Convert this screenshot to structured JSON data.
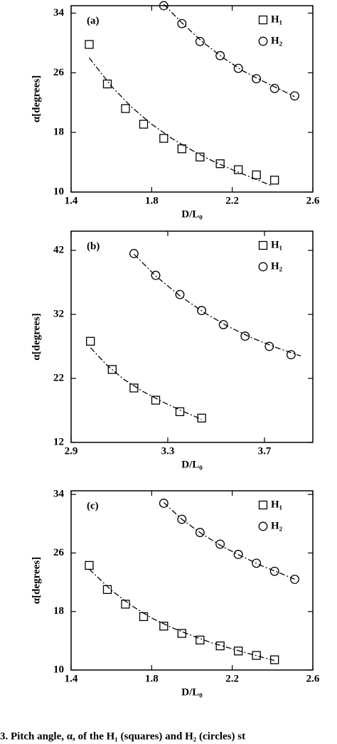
{
  "chart_data": [
    {
      "type": "scatter",
      "label": "(a)",
      "xlabel": "D/L₀",
      "ylabel": "α[degrees]",
      "xlim": [
        1.4,
        2.6
      ],
      "ylim": [
        10,
        35
      ],
      "xticks": [
        1.4,
        1.8,
        2.2,
        2.6
      ],
      "yticks": [
        10,
        18,
        26,
        34
      ],
      "series": [
        {
          "name": "H₁",
          "marker": "square",
          "color": "#000000",
          "x": [
            1.49,
            1.58,
            1.67,
            1.76,
            1.86,
            1.95,
            2.04,
            2.14,
            2.23,
            2.32,
            2.41
          ],
          "values": [
            29.8,
            24.5,
            21.2,
            19.1,
            17.2,
            15.8,
            14.7,
            13.8,
            13.0,
            12.3,
            11.6
          ],
          "fit_x": [
            1.49,
            1.6,
            1.7,
            1.8,
            1.9,
            2.0,
            2.1,
            2.2,
            2.3,
            2.4
          ],
          "fit_values": [
            28,
            24.2,
            21.4,
            19.1,
            17.2,
            15.6,
            14.2,
            13.0,
            11.9,
            10.8
          ]
        },
        {
          "name": "H₂",
          "marker": "circle",
          "color": "#000000",
          "x": [
            1.86,
            1.95,
            2.04,
            2.14,
            2.23,
            2.32,
            2.41,
            2.51
          ],
          "values": [
            35,
            32.6,
            30.2,
            28.3,
            26.6,
            25.2,
            23.9,
            22.9
          ],
          "fit_x": [
            1.86,
            1.95,
            2.05,
            2.15,
            2.25,
            2.35,
            2.45,
            2.51
          ],
          "fit_values": [
            35.2,
            32.7,
            30.2,
            28.1,
            26.3,
            24.9,
            23.6,
            22.8
          ]
        }
      ]
    },
    {
      "type": "scatter",
      "label": "(b)",
      "xlabel": "D/L₀",
      "ylabel": "α[degrees]",
      "xlim": [
        2.9,
        3.9
      ],
      "ylim": [
        12,
        45
      ],
      "xticks": [
        2.9,
        3.3,
        3.7
      ],
      "yticks": [
        12,
        22,
        32,
        42
      ],
      "series": [
        {
          "name": "H₁",
          "marker": "square",
          "color": "#000000",
          "x": [
            2.98,
            3.07,
            3.16,
            3.25,
            3.35,
            3.44
          ],
          "values": [
            27.8,
            23.4,
            20.5,
            18.6,
            16.8,
            15.8
          ],
          "fit_x": [
            2.98,
            3.05,
            3.12,
            3.2,
            3.28,
            3.36,
            3.44
          ],
          "fit_values": [
            26.8,
            24.0,
            21.8,
            19.9,
            18.3,
            16.9,
            15.6
          ]
        },
        {
          "name": "H₂",
          "marker": "circle",
          "color": "#000000",
          "x": [
            3.16,
            3.25,
            3.35,
            3.44,
            3.53,
            3.62,
            3.72,
            3.81
          ],
          "values": [
            41.5,
            38.1,
            35.1,
            32.6,
            30.4,
            28.6,
            27.0,
            25.7
          ],
          "fit_x": [
            3.16,
            3.25,
            3.35,
            3.45,
            3.55,
            3.65,
            3.75,
            3.85
          ],
          "fit_values": [
            41.4,
            38.0,
            34.9,
            32.3,
            30.1,
            28.3,
            26.8,
            25.5
          ]
        }
      ]
    },
    {
      "type": "scatter",
      "label": "(c)",
      "xlabel": "D/L₀",
      "ylabel": "α[degrees]",
      "xlim": [
        1.4,
        2.6
      ],
      "ylim": [
        10,
        34.5
      ],
      "xticks": [
        1.4,
        1.8,
        2.2,
        2.6
      ],
      "yticks": [
        10,
        18,
        26,
        34
      ],
      "series": [
        {
          "name": "H₁",
          "marker": "square",
          "color": "#000000",
          "x": [
            1.49,
            1.58,
            1.67,
            1.76,
            1.86,
            1.95,
            2.04,
            2.14,
            2.23,
            2.32,
            2.41
          ],
          "values": [
            24.3,
            21.0,
            19.0,
            17.3,
            16.0,
            15.0,
            14.1,
            13.3,
            12.6,
            12.0,
            11.4
          ],
          "fit_x": [
            1.49,
            1.6,
            1.7,
            1.8,
            1.9,
            2.0,
            2.1,
            2.2,
            2.3,
            2.41
          ],
          "fit_values": [
            23.8,
            20.9,
            18.8,
            17.1,
            15.8,
            14.7,
            13.7,
            12.9,
            12.1,
            11.3
          ]
        },
        {
          "name": "H₂",
          "marker": "circle",
          "color": "#000000",
          "x": [
            1.86,
            1.95,
            2.04,
            2.14,
            2.23,
            2.32,
            2.41,
            2.51
          ],
          "values": [
            32.8,
            30.6,
            28.8,
            27.2,
            25.8,
            24.6,
            23.5,
            22.4
          ],
          "fit_x": [
            1.86,
            1.95,
            2.05,
            2.15,
            2.25,
            2.35,
            2.45,
            2.51
          ],
          "fit_values": [
            32.9,
            30.6,
            28.6,
            26.9,
            25.5,
            24.2,
            23.1,
            22.4
          ]
        }
      ]
    }
  ],
  "caption": "3.  Pitch angle, α, of the H₁ (squares) and H₂ (circles) st"
}
